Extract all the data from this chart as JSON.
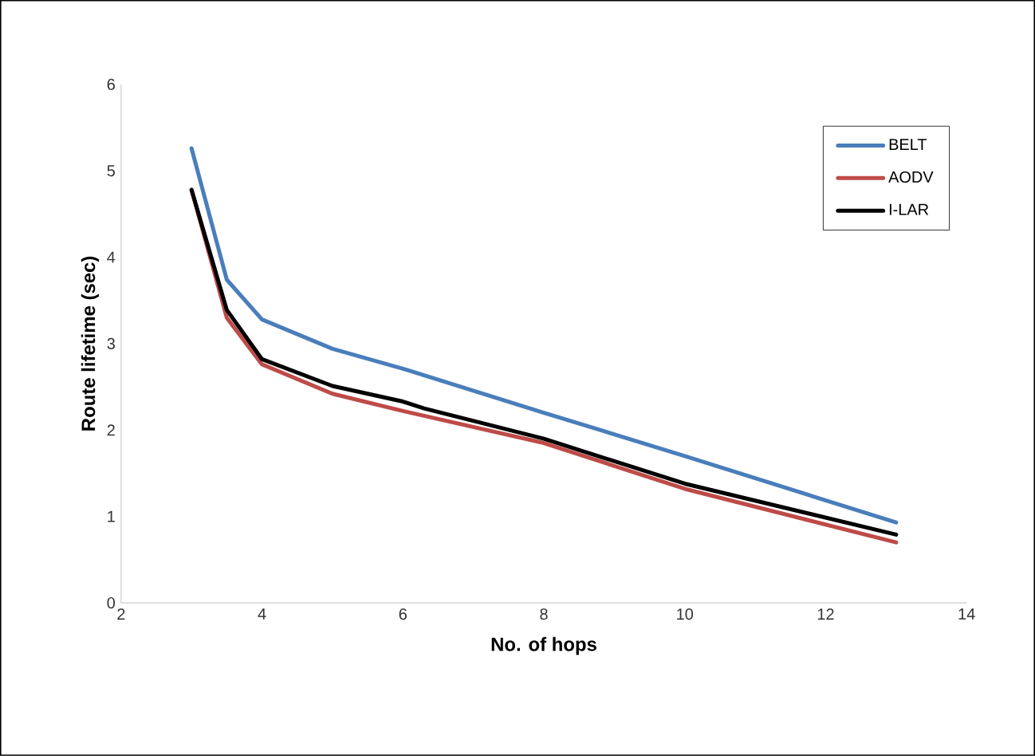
{
  "chart_data": {
    "type": "line",
    "xlabel": "No. of hops",
    "ylabel": "Route lifetime (sec)",
    "xlim": [
      2,
      14
    ],
    "ylim": [
      0,
      6
    ],
    "xticks": [
      2,
      4,
      6,
      8,
      10,
      12,
      14
    ],
    "yticks": [
      0,
      1,
      2,
      3,
      4,
      5,
      6
    ],
    "grid": false,
    "legend": "top right",
    "marker": "none",
    "line_style": "solid",
    "series": [
      {
        "name": "BELT",
        "color": "#4a7ebb",
        "x": [
          3,
          3.5,
          4,
          5,
          6,
          8,
          10,
          13
        ],
        "values": [
          5.26,
          3.74,
          3.28,
          2.94,
          2.71,
          2.2,
          1.7,
          0.93
        ]
      },
      {
        "name": "AODV",
        "color": "#be4b48",
        "x": [
          3,
          3.5,
          4,
          5,
          6,
          8,
          10,
          13
        ],
        "values": [
          4.78,
          3.3,
          2.76,
          2.42,
          2.22,
          1.85,
          1.32,
          0.7
        ]
      },
      {
        "name": "I-LAR",
        "color": "#000000",
        "x": [
          3,
          3.5,
          4,
          5,
          6,
          6.3,
          8,
          10,
          13
        ],
        "values": [
          4.78,
          3.39,
          2.82,
          2.51,
          2.33,
          2.25,
          1.9,
          1.38,
          0.79
        ]
      }
    ]
  }
}
